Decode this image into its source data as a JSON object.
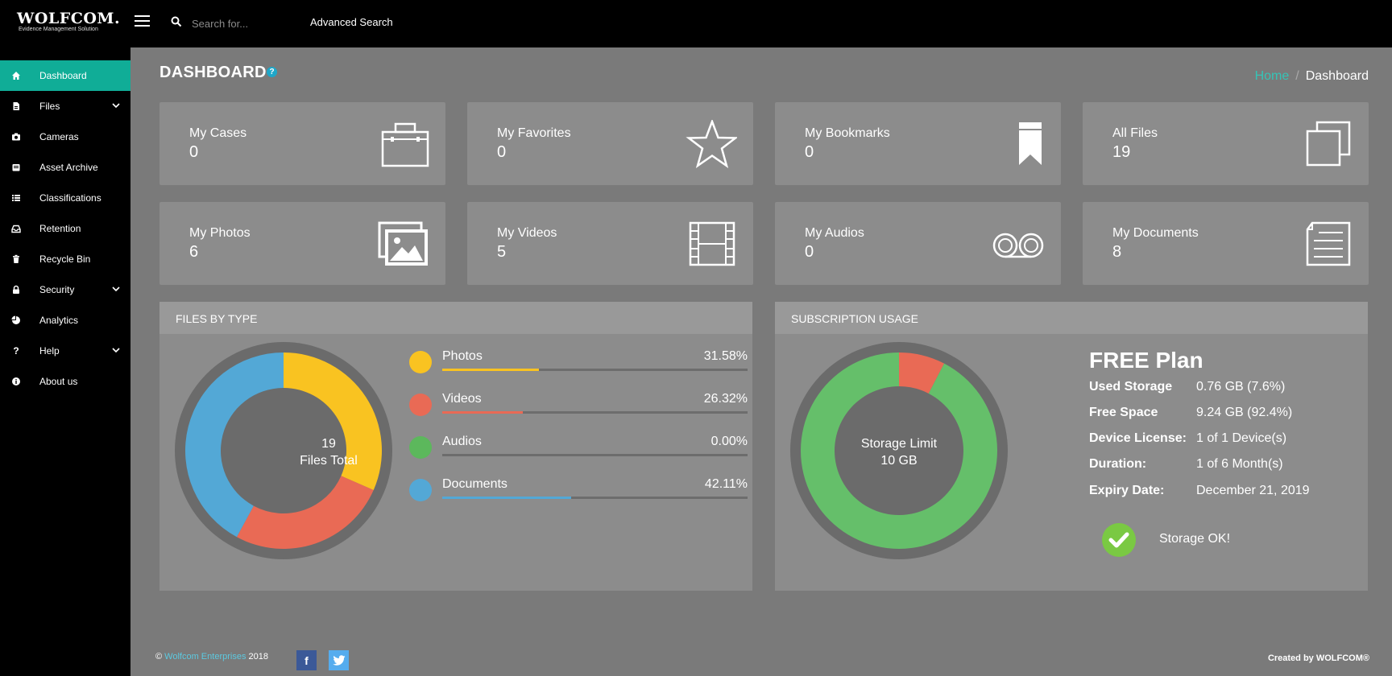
{
  "app": {
    "logo_title": "WOLFCOM.",
    "logo_subtitle": "Evidence Management Solution"
  },
  "topbar": {
    "search_placeholder": "Search for...",
    "advanced_search_label": "Advanced Search"
  },
  "sidebar": {
    "items": [
      {
        "label": "Dashboard",
        "icon": "home-icon",
        "active": true
      },
      {
        "label": "Files",
        "icon": "file-icon",
        "has_submenu": true
      },
      {
        "label": "Cameras",
        "icon": "camera-icon"
      },
      {
        "label": "Asset Archive",
        "icon": "archive-icon"
      },
      {
        "label": "Classifications",
        "icon": "list-icon"
      },
      {
        "label": "Retention",
        "icon": "inbox-icon"
      },
      {
        "label": "Recycle Bin",
        "icon": "trash-icon"
      },
      {
        "label": "Security",
        "icon": "lock-icon",
        "has_submenu": true
      },
      {
        "label": "Analytics",
        "icon": "pie-chart-icon"
      },
      {
        "label": "Help",
        "icon": "question-icon",
        "has_submenu": true
      },
      {
        "label": "About us",
        "icon": "info-icon"
      }
    ]
  },
  "page": {
    "title": "DASHBOARD",
    "help_badge": "?",
    "breadcrumb": {
      "home": "Home",
      "separator": "/",
      "current": "Dashboard"
    }
  },
  "cards": [
    {
      "label": "My Cases",
      "value": "0",
      "icon": "briefcase-icon"
    },
    {
      "label": "My Favorites",
      "value": "0",
      "icon": "star-icon"
    },
    {
      "label": "My Bookmarks",
      "value": "0",
      "icon": "bookmark-icon"
    },
    {
      "label": "All Files",
      "value": "19",
      "icon": "files-icon"
    },
    {
      "label": "My Photos",
      "value": "6",
      "icon": "photos-icon"
    },
    {
      "label": "My Videos",
      "value": "5",
      "icon": "film-icon"
    },
    {
      "label": "My Audios",
      "value": "0",
      "icon": "cassette-icon"
    },
    {
      "label": "My Documents",
      "value": "8",
      "icon": "document-icon"
    }
  ],
  "files_by_type": {
    "heading": "Files by Type",
    "center_count": "19",
    "center_label": "Files Total",
    "items": [
      {
        "name": "Photos",
        "percent": "31.58%",
        "value": 31.58,
        "color": "#f9c321"
      },
      {
        "name": "Videos",
        "percent": "26.32%",
        "value": 26.32,
        "color": "#e96a55"
      },
      {
        "name": "Audios",
        "percent": "0.00%",
        "value": 0,
        "color": "#5cb85c"
      },
      {
        "name": "Documents",
        "percent": "42.11%",
        "value": 42.11,
        "color": "#53a8d6"
      }
    ]
  },
  "subscription": {
    "heading": "Subscription Usage",
    "plan": "FREE Plan",
    "center_line1": "Storage Limit",
    "center_line2": "10 GB",
    "used_fraction": 0.076,
    "used_color": "#e96a55",
    "free_color": "#65bf6a",
    "rows": [
      {
        "key": "Used Storage",
        "value": "0.76 GB (7.6%)"
      },
      {
        "key": "Free Space",
        "value": "9.24 GB (92.4%)"
      },
      {
        "key": "Device License:",
        "value": "1 of 1 Device(s)"
      },
      {
        "key": "Duration:",
        "value": "1 of 6 Month(s)"
      },
      {
        "key": "Expiry Date:",
        "value": "December 21, 2019"
      }
    ],
    "status": "Storage OK!"
  },
  "footer": {
    "copyright_symbol": "©",
    "company": "Wolfcom Enterprises",
    "year": "2018",
    "facebook": "f",
    "twitter": "t",
    "created_by": "Created by WOLFCOM®"
  }
}
